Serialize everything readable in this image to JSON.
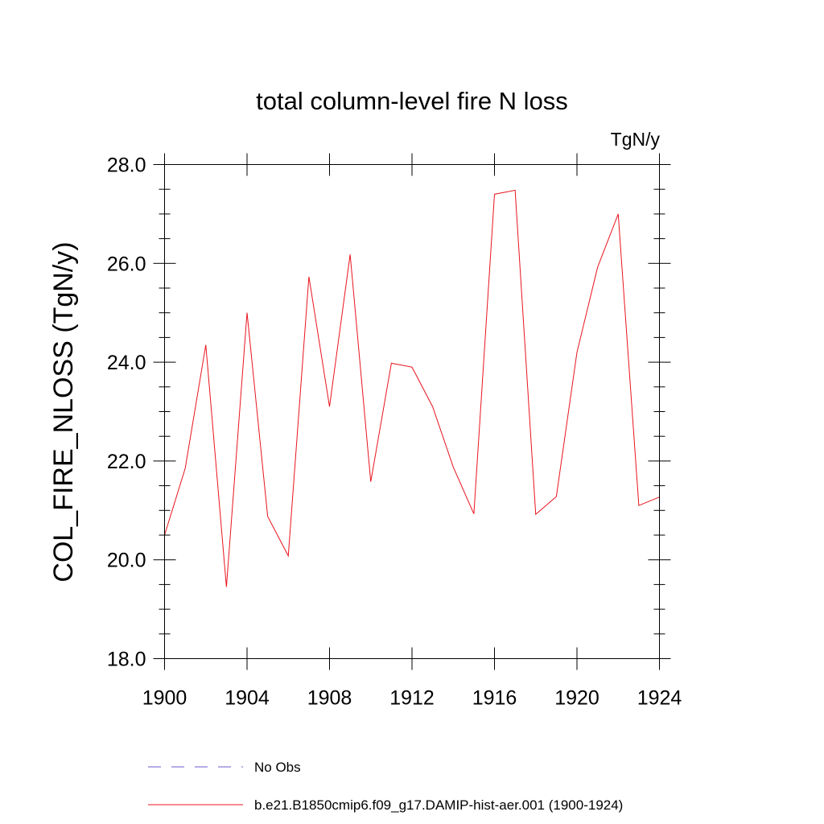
{
  "chart_data": {
    "type": "line",
    "title": "total column-level fire N loss",
    "units_label": "TgN/y",
    "ylabel": "COL_FIRE_NLOSS  (TgN/y)",
    "xlabel": "",
    "xlim": [
      1900,
      1924
    ],
    "ylim": [
      18.0,
      28.0
    ],
    "x_ticks": [
      1900,
      1904,
      1908,
      1912,
      1916,
      1920,
      1924
    ],
    "x_tick_labels": [
      "1900",
      "1904",
      "1908",
      "1912",
      "1916",
      "1920",
      "1924"
    ],
    "y_ticks": [
      18.0,
      20.0,
      22.0,
      24.0,
      26.0,
      28.0
    ],
    "y_tick_labels": [
      "18.0",
      "20.0",
      "22.0",
      "24.0",
      "26.0",
      "28.0"
    ],
    "grid": false,
    "legend_position": "bottom",
    "legend": [
      {
        "label": "No Obs",
        "color": "#6a5acd",
        "dash": "dashed"
      },
      {
        "label": "b.e21.B1850cmip6.f09_g17.DAMIP-hist-aer.001 (1900-1924)",
        "color": "#e8141e",
        "dash": "solid"
      }
    ],
    "series": [
      {
        "name": "b.e21.B1850cmip6.f09_g17.DAMIP-hist-aer.001 (1900-1924)",
        "color": "#e8141e",
        "x": [
          1900,
          1901,
          1902,
          1903,
          1904,
          1905,
          1906,
          1907,
          1908,
          1909,
          1910,
          1911,
          1912,
          1913,
          1914,
          1915,
          1916,
          1917,
          1918,
          1919,
          1920,
          1921,
          1922,
          1923,
          1924
        ],
        "values": [
          20.5,
          21.85,
          24.35,
          19.45,
          25.0,
          20.88,
          20.08,
          25.73,
          23.1,
          26.18,
          21.58,
          23.98,
          23.9,
          23.1,
          21.88,
          20.93,
          27.4,
          27.48,
          20.92,
          21.28,
          24.2,
          25.92,
          27.0,
          21.1,
          21.27
        ]
      }
    ]
  }
}
